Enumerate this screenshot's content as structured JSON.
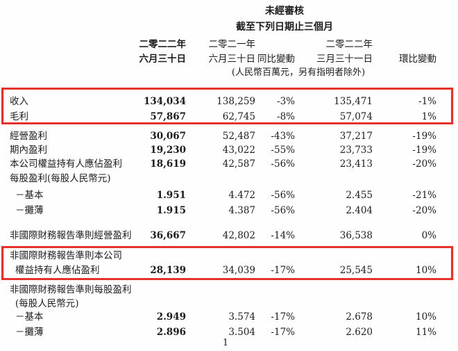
{
  "header": {
    "title": "未經審核",
    "subtitle": "截至下列日期止三個月",
    "columns": [
      {
        "line1": "二零二二年",
        "line2": "六月三十日",
        "bold": true
      },
      {
        "line1": "二零二一年",
        "line2": "六月三十日",
        "bold": false
      },
      {
        "line1": "",
        "line2": "同比變動",
        "bold": false
      },
      {
        "line1": "二零二二年",
        "line2": "三月三十一日",
        "bold": false
      },
      {
        "line1": "",
        "line2": "環比變動",
        "bold": false
      }
    ],
    "unit_note": "(人民幣百萬元，另有指明者除外)"
  },
  "table": {
    "rows": [
      {
        "key": "revenue",
        "label": "收入",
        "indent": 0,
        "values": [
          "134,034",
          "138,259",
          "-3%",
          "135,471",
          "-1%"
        ]
      },
      {
        "key": "gross-profit",
        "label": "毛利",
        "indent": 0,
        "values": [
          "57,867",
          "62,745",
          "-8%",
          "57,074",
          "1%"
        ]
      },
      {
        "key": "operating-profit",
        "label": "經營盈利",
        "indent": 0,
        "values": [
          "30,067",
          "52,487",
          "-43%",
          "37,217",
          "-19%"
        ]
      },
      {
        "key": "profit-for-period",
        "label": "期內盈利",
        "indent": 0,
        "values": [
          "19,230",
          "43,022",
          "-55%",
          "23,733",
          "-19%"
        ]
      },
      {
        "key": "equity-holders-profit",
        "label": "本公司權益持有人應佔盈利",
        "indent": 0,
        "values": [
          "18,619",
          "42,587",
          "-56%",
          "23,413",
          "-20%"
        ]
      },
      {
        "key": "eps-header",
        "label": "每股盈利(每股人民幣元)",
        "indent": 0,
        "values": []
      },
      {
        "key": "eps-basic",
        "label": "－基本",
        "indent": 1,
        "values": [
          "1.951",
          "4.472",
          "-56%",
          "2.455",
          "-21%"
        ]
      },
      {
        "key": "eps-diluted",
        "label": "－攤薄",
        "indent": 1,
        "values": [
          "1.915",
          "4.387",
          "-56%",
          "2.404",
          "-20%"
        ]
      },
      {
        "key": "non-ifrs-operating-profit",
        "label": "非國際財務報告準則經營盈利",
        "indent": 0,
        "values": [
          "36,667",
          "42,802",
          "-14%",
          "36,538",
          "0%"
        ]
      },
      {
        "key": "non-ifrs-equity-holders-line1",
        "label": "非國際財務報告準則本公司",
        "indent": 0,
        "values": []
      },
      {
        "key": "non-ifrs-equity-holders-line2",
        "label": "權益持有人應佔盈利",
        "indent": 1,
        "values": [
          "28,139",
          "34,039",
          "-17%",
          "25,545",
          "10%"
        ]
      },
      {
        "key": "non-ifrs-eps-header",
        "label": "非國際財務報告準則每股盈利",
        "indent": 0,
        "values": []
      },
      {
        "key": "non-ifrs-eps-unit",
        "label": "(每股人民幣元)",
        "indent": 1,
        "values": []
      },
      {
        "key": "non-ifrs-eps-basic",
        "label": "－基本",
        "indent": 1,
        "values": [
          "2.949",
          "3.574",
          "-17%",
          "2.678",
          "10%"
        ]
      },
      {
        "key": "non-ifrs-eps-diluted",
        "label": "－攤薄",
        "indent": 1,
        "values": [
          "2.896",
          "3.504",
          "-17%",
          "2.620",
          "11%"
        ]
      }
    ]
  },
  "highlights": [
    {
      "name": "revenue-gross-profit"
    },
    {
      "name": "non-ifrs-equity-holders-profit"
    }
  ],
  "page_number": "1",
  "colors": {
    "highlight_red": "#e4322d",
    "text": "#1c1c1c"
  }
}
